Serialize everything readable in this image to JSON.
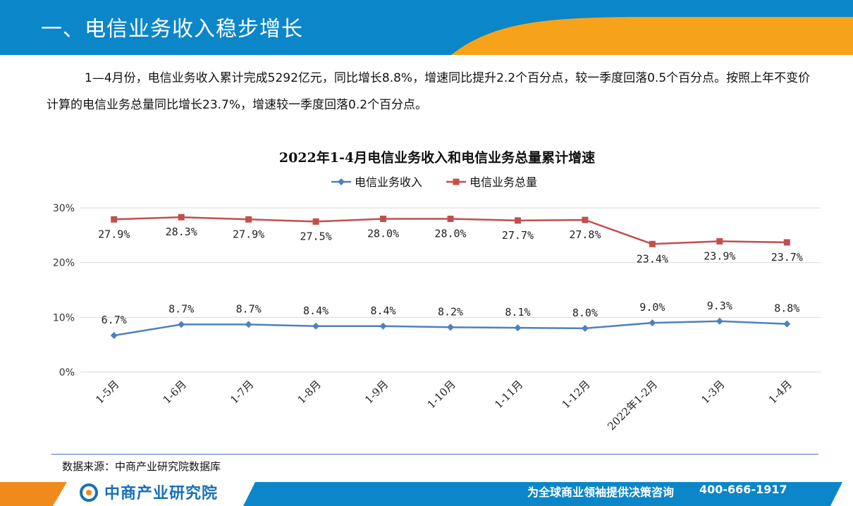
{
  "page": {
    "title": "一、电信业务收入稳步增长",
    "summary": "1—4月份，电信业务收入累计完成5292亿元，同比增长8.8%，增速同比提升2.2个百分点，较一季度回落0.5个百分点。按照上年不变价计算的电信业务总量同比增长23.7%，增速较一季度回落0.2个百分点。",
    "source": "数据来源：中商产业研究院数据库"
  },
  "footer": {
    "logo_text": "中商产业研究院",
    "slogan": "为全球商业领袖提供决策咨询",
    "phone": "400-666-1917"
  },
  "colors": {
    "header_blue": "#0b86c9",
    "header_orange": "#f6a31b",
    "income_series": "#4f81bd",
    "volume_series": "#c0504d",
    "grid": "#d9d9d9"
  },
  "chart_data": {
    "type": "line",
    "title": "2022年1-4月电信业务收入和电信业务总量累计增速",
    "categories": [
      "1-5月",
      "1-6月",
      "1-7月",
      "1-8月",
      "1-9月",
      "1-10月",
      "1-11月",
      "1-12月",
      "2022年1-2月",
      "1-3月",
      "1-4月"
    ],
    "series": [
      {
        "name": "电信业务收入",
        "values": [
          6.7,
          8.7,
          8.7,
          8.4,
          8.4,
          8.2,
          8.1,
          8.0,
          9.0,
          9.3,
          8.8
        ],
        "labels": [
          "6.7%",
          "8.7%",
          "8.7%",
          "8.4%",
          "8.4%",
          "8.2%",
          "8.1%",
          "8.0%",
          "9.0%",
          "9.3%",
          "8.8%"
        ],
        "color": "#4f81bd",
        "marker": "diamond"
      },
      {
        "name": "电信业务总量",
        "values": [
          27.9,
          28.3,
          27.9,
          27.5,
          28.0,
          28.0,
          27.7,
          27.8,
          23.4,
          23.9,
          23.7
        ],
        "labels": [
          "27.9%",
          "28.3%",
          "27.9%",
          "27.5%",
          "28.0%",
          "28.0%",
          "27.7%",
          "27.8%",
          "23.4%",
          "23.9%",
          "23.7%"
        ],
        "color": "#c0504d",
        "marker": "square"
      }
    ],
    "yticks": [
      "0%",
      "10%",
      "20%",
      "30%"
    ],
    "ylim": [
      0,
      30
    ],
    "grid": true,
    "legend": "top"
  }
}
